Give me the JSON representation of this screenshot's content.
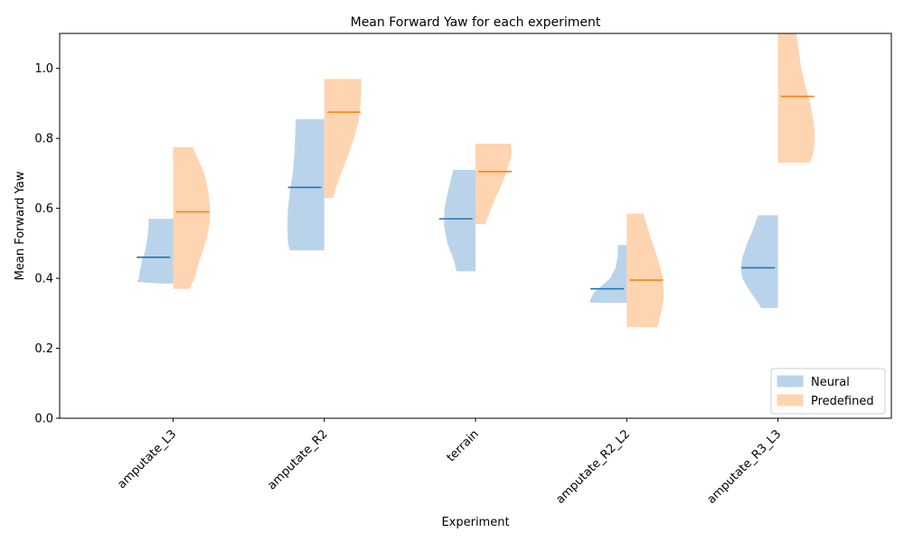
{
  "chart_data": {
    "type": "violin",
    "title": "Mean Forward Yaw for each experiment",
    "xlabel": "Experiment",
    "ylabel": "Mean Forward Yaw",
    "ylim": [
      0,
      1.1
    ],
    "yticks": [
      "0.0",
      "0.2",
      "0.4",
      "0.6",
      "0.8",
      "1.0"
    ],
    "ytick_values": [
      0,
      0.2,
      0.4,
      0.6,
      0.8,
      1.0
    ],
    "grid": false,
    "legend_position": "lower right",
    "categories": [
      "amputate_L3",
      "amputate_R2",
      "terrain",
      "amputate_R2_L2",
      "amputate_R3_L3"
    ],
    "series": [
      {
        "name": "Neural",
        "side": "left",
        "color": "#1f77b4",
        "fill": "#b9d4ea",
        "means": [
          0.46,
          0.66,
          0.57,
          0.37,
          0.43
        ],
        "violins": [
          {
            "min": 0.385,
            "max": 0.57,
            "profile": [
              [
                0.385,
                0.38
              ],
              [
                0.39,
                0.98
              ],
              [
                0.4,
                0.92
              ],
              [
                0.42,
                0.9
              ],
              [
                0.45,
                0.84
              ],
              [
                0.48,
                0.75
              ],
              [
                0.51,
                0.7
              ],
              [
                0.53,
                0.68
              ],
              [
                0.55,
                0.66
              ],
              [
                0.57,
                0.66
              ]
            ]
          },
          {
            "min": 0.48,
            "max": 0.855,
            "profile": [
              [
                0.48,
                0.93
              ],
              [
                0.5,
                0.98
              ],
              [
                0.55,
                1.0
              ],
              [
                0.6,
                0.98
              ],
              [
                0.65,
                0.93
              ],
              [
                0.7,
                0.85
              ],
              [
                0.75,
                0.81
              ],
              [
                0.8,
                0.79
              ],
              [
                0.83,
                0.78
              ],
              [
                0.855,
                0.77
              ]
            ]
          },
          {
            "min": 0.42,
            "max": 0.71,
            "profile": [
              [
                0.42,
                0.51
              ],
              [
                0.45,
                0.58
              ],
              [
                0.5,
                0.76
              ],
              [
                0.55,
                0.85
              ],
              [
                0.6,
                0.84
              ],
              [
                0.65,
                0.74
              ],
              [
                0.68,
                0.67
              ],
              [
                0.71,
                0.6
              ]
            ]
          },
          {
            "min": 0.33,
            "max": 0.495,
            "profile": [
              [
                0.33,
                0.99
              ],
              [
                0.34,
                0.98
              ],
              [
                0.36,
                0.88
              ],
              [
                0.38,
                0.66
              ],
              [
                0.4,
                0.45
              ],
              [
                0.43,
                0.3
              ],
              [
                0.46,
                0.25
              ],
              [
                0.48,
                0.24
              ],
              [
                0.495,
                0.24
              ]
            ]
          },
          {
            "min": 0.315,
            "max": 0.58,
            "profile": [
              [
                0.315,
                0.45
              ],
              [
                0.34,
                0.6
              ],
              [
                0.37,
                0.8
              ],
              [
                0.4,
                0.96
              ],
              [
                0.43,
                1.0
              ],
              [
                0.46,
                0.96
              ],
              [
                0.5,
                0.83
              ],
              [
                0.54,
                0.67
              ],
              [
                0.58,
                0.54
              ]
            ]
          }
        ]
      },
      {
        "name": "Predefined",
        "side": "right",
        "color": "#ff7f0e",
        "fill": "#ffd4b0",
        "means": [
          0.59,
          0.875,
          0.705,
          0.395,
          0.92
        ],
        "violins": [
          {
            "min": 0.37,
            "max": 0.775,
            "profile": [
              [
                0.37,
                0.44
              ],
              [
                0.4,
                0.58
              ],
              [
                0.45,
                0.71
              ],
              [
                0.5,
                0.87
              ],
              [
                0.55,
                0.98
              ],
              [
                0.6,
                1.0
              ],
              [
                0.65,
                0.95
              ],
              [
                0.7,
                0.84
              ],
              [
                0.74,
                0.68
              ],
              [
                0.775,
                0.53
              ]
            ]
          },
          {
            "min": 0.63,
            "max": 0.97,
            "profile": [
              [
                0.63,
                0.24
              ],
              [
                0.66,
                0.32
              ],
              [
                0.7,
                0.45
              ],
              [
                0.75,
                0.64
              ],
              [
                0.8,
                0.8
              ],
              [
                0.85,
                0.93
              ],
              [
                0.9,
                0.98
              ],
              [
                0.94,
                1.0
              ],
              [
                0.97,
                1.0
              ]
            ]
          },
          {
            "min": 0.555,
            "max": 0.785,
            "profile": [
              [
                0.555,
                0.26
              ],
              [
                0.58,
                0.35
              ],
              [
                0.62,
                0.5
              ],
              [
                0.66,
                0.68
              ],
              [
                0.7,
                0.82
              ],
              [
                0.74,
                0.95
              ],
              [
                0.76,
                0.98
              ],
              [
                0.785,
                0.95
              ]
            ]
          },
          {
            "min": 0.26,
            "max": 0.585,
            "profile": [
              [
                0.26,
                0.83
              ],
              [
                0.29,
                0.9
              ],
              [
                0.32,
                0.97
              ],
              [
                0.35,
                1.0
              ],
              [
                0.4,
                0.98
              ],
              [
                0.45,
                0.86
              ],
              [
                0.5,
                0.7
              ],
              [
                0.55,
                0.55
              ],
              [
                0.585,
                0.45
              ]
            ]
          },
          {
            "min": 0.73,
            "max": 1.1,
            "profile": [
              [
                0.73,
                0.87
              ],
              [
                0.76,
                0.96
              ],
              [
                0.8,
                1.0
              ],
              [
                0.85,
                0.96
              ],
              [
                0.9,
                0.87
              ],
              [
                0.95,
                0.74
              ],
              [
                1.0,
                0.63
              ],
              [
                1.05,
                0.56
              ],
              [
                1.1,
                0.5
              ]
            ]
          }
        ]
      }
    ]
  }
}
